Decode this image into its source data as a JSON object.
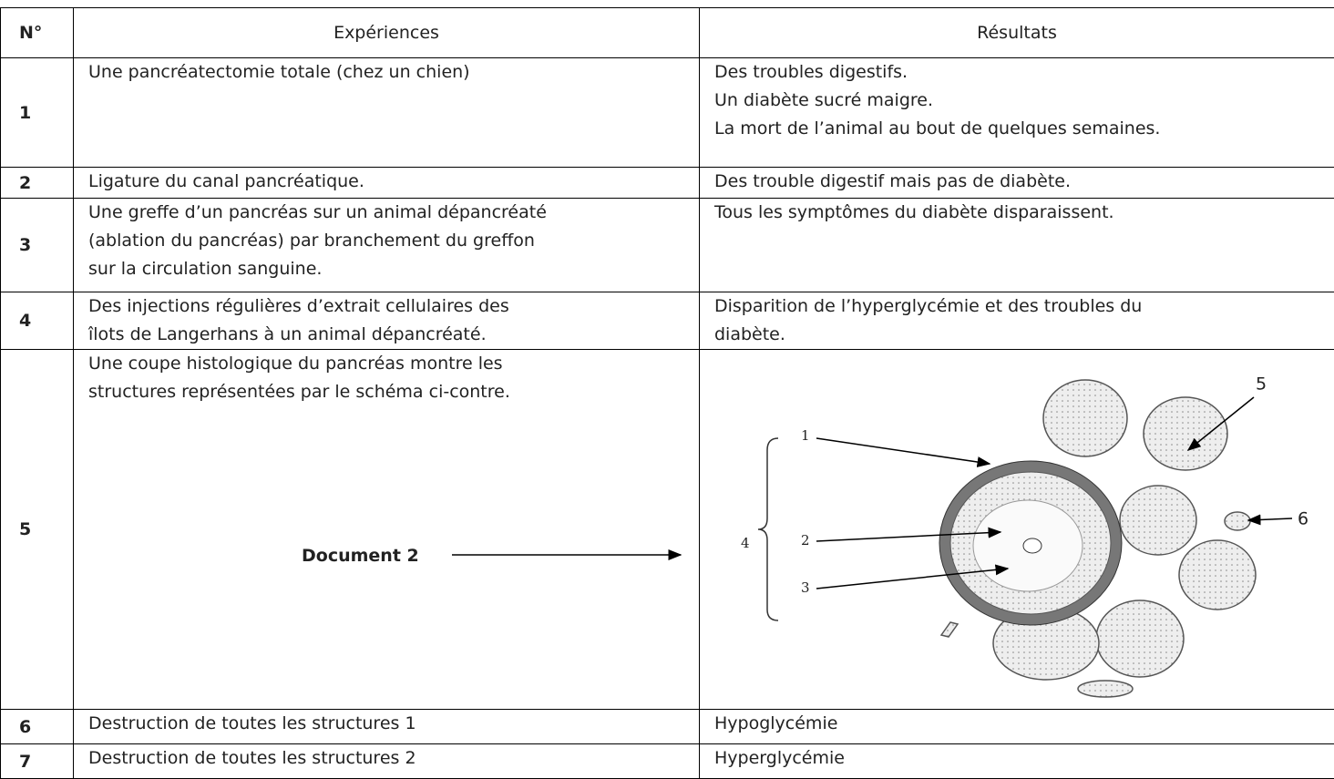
{
  "table": {
    "header": [
      "N°",
      "Expériences",
      "Résultats"
    ],
    "rows": [
      {
        "number": "1",
        "experience": [
          "Une pancréatectomie totale (chez un chien)"
        ],
        "result": [
          "Des troubles digestifs.",
          "Un diabète sucré maigre.",
          "La mort de l’animal au bout de quelques semaines."
        ]
      },
      {
        "number": "2",
        "experience": [
          "Ligature du canal pancréatique."
        ],
        "result": [
          "Des trouble digestif mais pas de diabète."
        ]
      },
      {
        "number": "3",
        "experience": [
          "Une greffe d’un pancréas sur un animal dépancréaté",
          "(ablation du pancréas) par branchement du greffon",
          "sur la circulation sanguine."
        ],
        "result": [
          "Tous les symptômes du diabète disparaissent."
        ]
      },
      {
        "number": "4",
        "experience": [
          "Des injections régulières d’extrait cellulaires des",
          "îlots de Langerhans à un animal dépancréaté."
        ],
        "result": [
          "Disparition de l’hyperglycémie et des troubles du",
          "diabète."
        ]
      },
      {
        "number": "5",
        "experience": [
          "Une coupe histologique du pancréas montre les",
          "structures représentées par le schéma ci-contre."
        ]
      },
      {
        "number": "6",
        "experience": [
          "Destruction de toutes les structures 1"
        ],
        "result": [
          "Hypoglycémie"
        ]
      },
      {
        "number": "7",
        "experience": [
          "Destruction de toutes les structures 2"
        ],
        "result": [
          "Hyperglycémie"
        ]
      }
    ]
  },
  "document_label": "Document 2",
  "diagram": {
    "labels": [
      "1",
      "2",
      "3",
      "4",
      "5",
      "6"
    ]
  }
}
